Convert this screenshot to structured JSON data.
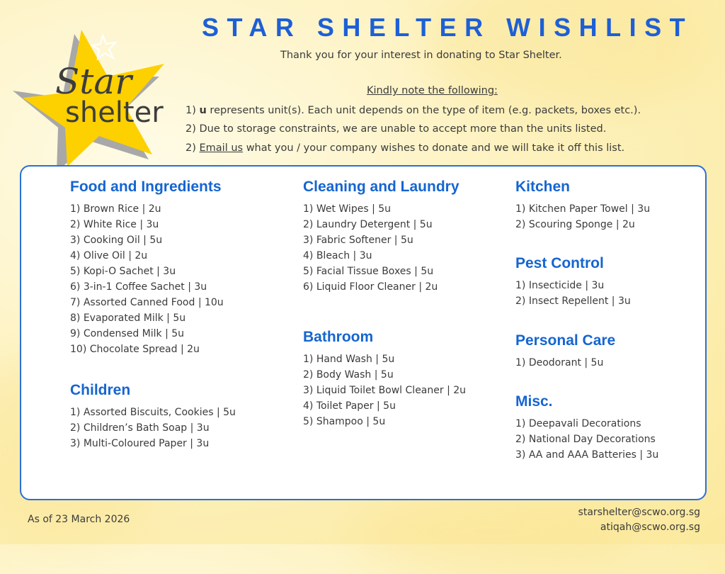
{
  "logo": {
    "line1": "Star",
    "line2": "shelter",
    "colors": {
      "star": "#fdd000",
      "shadow": "#a8a8a8",
      "text": "#3d3d3d"
    }
  },
  "header": {
    "title": "STAR SHELTER WISHLIST",
    "thanks": "Thank you for your interest in donating to Star Shelter.",
    "kindly": "Kindly note the following:",
    "note1_prefix": "1) ",
    "note1_bold": "u",
    "note1_rest": " represents unit(s). Each unit depends on the type of item (e.g. packets, boxes etc.).",
    "note2": "2) Due to storage constraints, we are unable to accept more than the units listed.",
    "note3_prefix": "2) ",
    "note3_link": "Email us",
    "note3_rest": " what you / your company wishes to donate and we will take it off this list."
  },
  "sections": [
    {
      "title": "Food and Ingredients",
      "items": [
        "1) Brown Rice | 2u",
        "2) White Rice | 3u",
        "3) Cooking Oil | 5u",
        "4) Olive Oil | 2u",
        "5) Kopi-O Sachet | 3u",
        "6) 3-in-1 Coffee Sachet | 3u",
        "7) Assorted Canned Food | 10u",
        "8) Evaporated Milk | 5u",
        "9) Condensed Milk | 5u",
        "10) Chocolate Spread | 2u"
      ]
    },
    {
      "title": "Children",
      "items": [
        "1) Assorted Biscuits, Cookies | 5u",
        "2) Children’s Bath Soap | 3u",
        "3) Multi-Coloured Paper | 3u"
      ]
    },
    {
      "title": "Cleaning and Laundry",
      "items": [
        "1) Wet Wipes | 5u",
        "2) Laundry Detergent | 5u",
        "3) Fabric Softener | 5u",
        "4) Bleach | 3u",
        "5) Facial Tissue Boxes | 5u",
        "6) Liquid Floor Cleaner | 2u"
      ]
    },
    {
      "title": "Bathroom",
      "items": [
        "1) Hand Wash | 5u",
        "2) Body Wash | 5u",
        "3) Liquid Toilet Bowl Cleaner | 2u",
        "4) Toilet Paper | 5u",
        "5) Shampoo | 5u"
      ]
    },
    {
      "title": "Kitchen",
      "items": [
        "1) Kitchen Paper Towel | 3u",
        "2) Scouring Sponge | 2u"
      ]
    },
    {
      "title": "Pest Control",
      "items": [
        "1) Insecticide | 3u",
        "2) Insect Repellent | 3u"
      ]
    },
    {
      "title": "Personal Care",
      "items": [
        "1) Deodorant | 5u"
      ]
    },
    {
      "title": "Misc.",
      "items": [
        "1) Deepavali Decorations",
        "2) National Day Decorations",
        "3) AA and AAA Batteries | 3u"
      ]
    }
  ],
  "footer": {
    "as_of": "As of 23 March 2026",
    "emails": [
      "starshelter@scwo.org.sg",
      "atiqah@scwo.org.sg"
    ]
  },
  "colors": {
    "title": "#1d5fd6",
    "heading": "#1565d0",
    "border": "#2a6fd9",
    "background": "#fdf2c0"
  }
}
